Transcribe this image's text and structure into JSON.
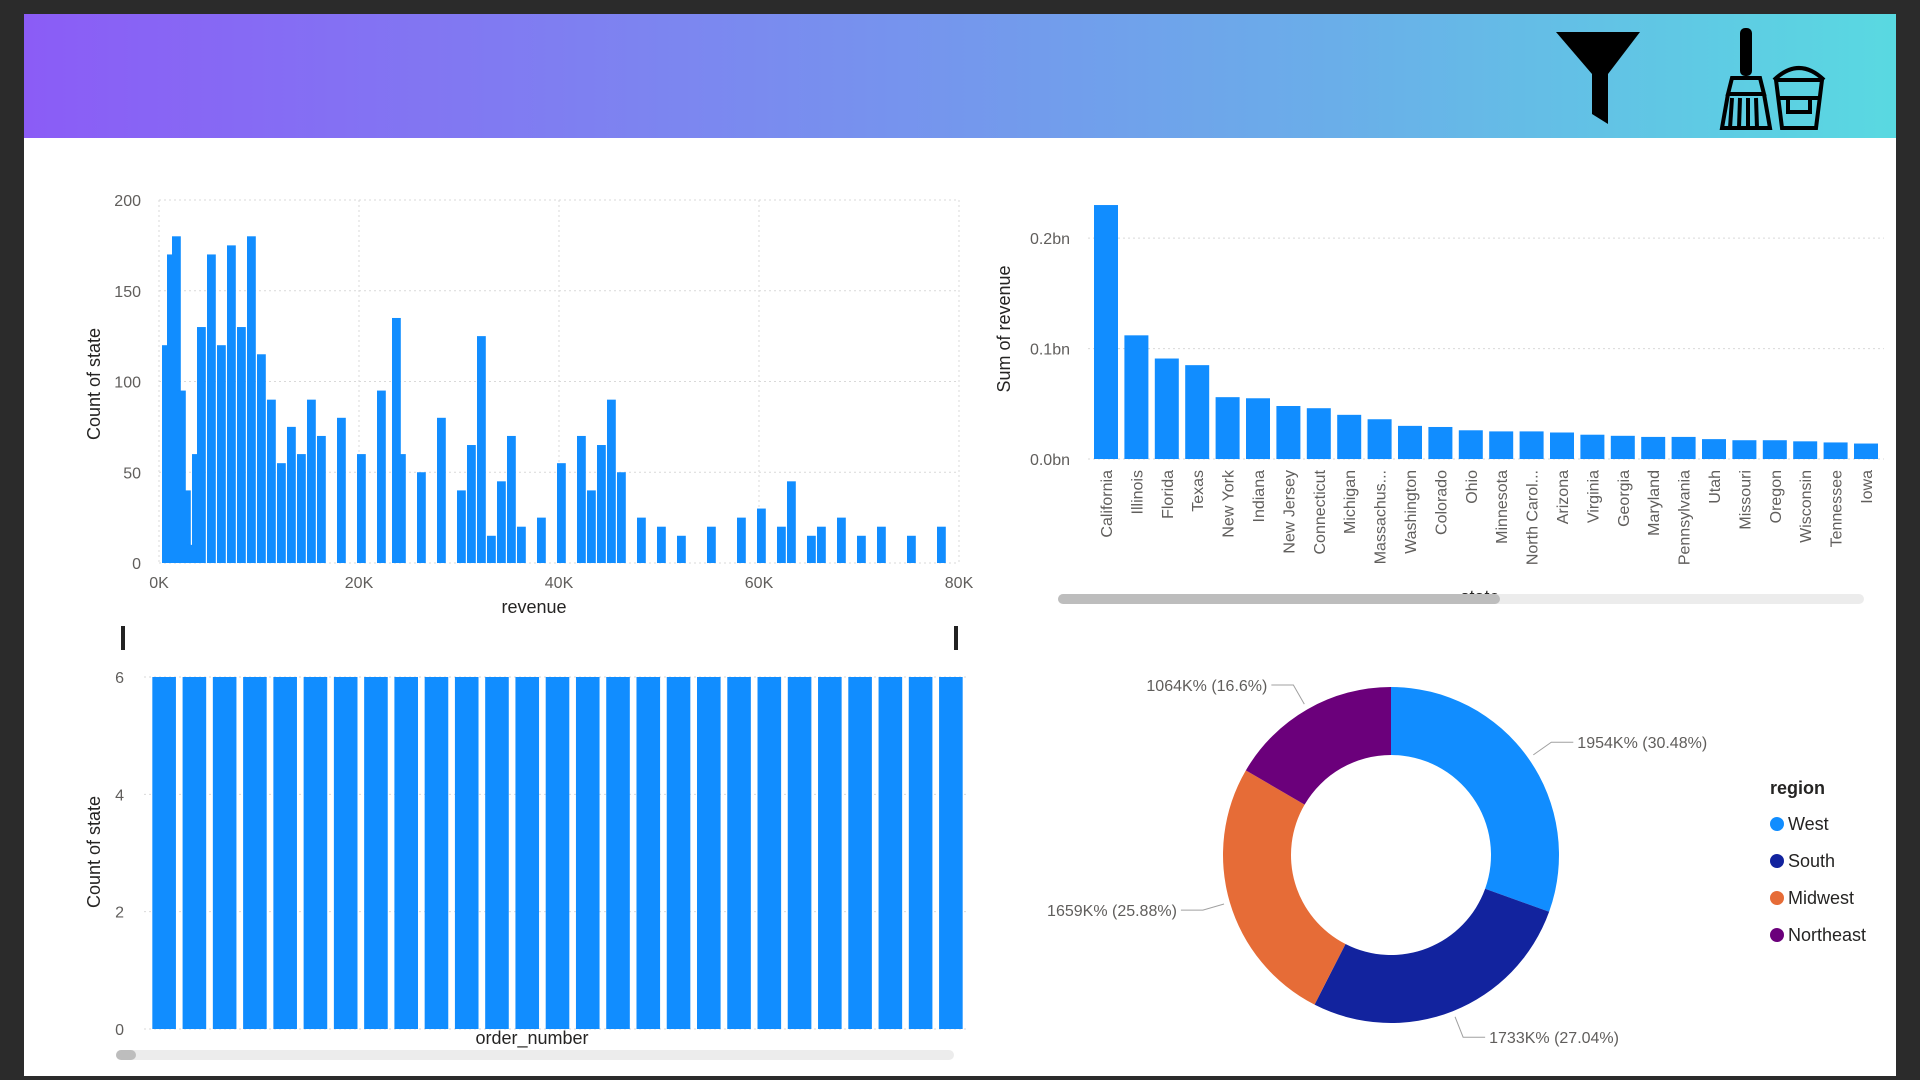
{
  "header": {
    "filter_icon": "funnel-icon",
    "clear_icon": "broom-bucket-icon"
  },
  "colors": {
    "bar": "#118dff",
    "grid": "#d9d9d9",
    "axis_text": "#605e5c",
    "title_text": "#252423",
    "region": {
      "West": "#118dff",
      "South": "#12239e",
      "Midwest": "#e66c37",
      "Northeast": "#6b007b"
    }
  },
  "chart_data": [
    {
      "type": "bar",
      "subtype": "histogram",
      "xlabel": "revenue",
      "ylabel": "Count of state",
      "x_ticks": [
        "0K",
        "20K",
        "40K",
        "60K",
        "80K"
      ],
      "y_ticks": [
        "0",
        "50",
        "100",
        "150",
        "200"
      ],
      "xlim": [
        0,
        80000
      ],
      "ylim": [
        0,
        200
      ],
      "grid": true,
      "x": [
        500,
        1000,
        1500,
        2000,
        2500,
        3000,
        3500,
        4000,
        5000,
        6000,
        7000,
        8000,
        9000,
        10000,
        11000,
        12000,
        13000,
        14000,
        15000,
        16000,
        18000,
        20000,
        22000,
        23500,
        24000,
        26000,
        28000,
        30000,
        31000,
        32000,
        33000,
        34000,
        35000,
        36000,
        38000,
        40000,
        42000,
        43000,
        44000,
        45000,
        46000,
        48000,
        50000,
        52000,
        55000,
        58000,
        60000,
        62000,
        63000,
        65000,
        66000,
        68000,
        70000,
        72000,
        75000,
        78000
      ],
      "values": [
        120,
        170,
        180,
        95,
        40,
        10,
        60,
        130,
        170,
        120,
        175,
        130,
        180,
        115,
        90,
        55,
        75,
        60,
        90,
        70,
        80,
        60,
        95,
        135,
        60,
        50,
        80,
        40,
        65,
        125,
        15,
        45,
        70,
        20,
        25,
        55,
        70,
        40,
        65,
        90,
        50,
        25,
        20,
        15,
        20,
        25,
        30,
        20,
        45,
        15,
        20,
        25,
        15,
        20,
        15,
        20
      ]
    },
    {
      "type": "bar",
      "xlabel": "state",
      "ylabel": "Sum of revenue",
      "y_ticks": [
        "0.0bn",
        "0.1bn",
        "0.2bn"
      ],
      "ylim": [
        0,
        0.24
      ],
      "grid": true,
      "categories": [
        "California",
        "Illinois",
        "Florida",
        "Texas",
        "New York",
        "Indiana",
        "New Jersey",
        "Connecticut",
        "Michigan",
        "Massachus...",
        "Washington",
        "Colorado",
        "Ohio",
        "Minnesota",
        "North Carol...",
        "Arizona",
        "Virginia",
        "Georgia",
        "Maryland",
        "Pennsylvania",
        "Utah",
        "Missouri",
        "Oregon",
        "Wisconsin",
        "Tennessee",
        "Iowa"
      ],
      "values": [
        0.23,
        0.112,
        0.091,
        0.085,
        0.056,
        0.055,
        0.048,
        0.046,
        0.04,
        0.036,
        0.03,
        0.029,
        0.026,
        0.025,
        0.025,
        0.024,
        0.022,
        0.021,
        0.02,
        0.02,
        0.018,
        0.017,
        0.017,
        0.016,
        0.015,
        0.014
      ]
    },
    {
      "type": "bar",
      "xlabel": "order_number",
      "ylabel": "Count of state",
      "y_ticks": [
        "0",
        "2",
        "4",
        "6"
      ],
      "ylim": [
        0,
        6
      ],
      "grid": true,
      "bar_count": 27,
      "values": [
        6,
        6,
        6,
        6,
        6,
        6,
        6,
        6,
        6,
        6,
        6,
        6,
        6,
        6,
        6,
        6,
        6,
        6,
        6,
        6,
        6,
        6,
        6,
        6,
        6,
        6,
        6
      ]
    },
    {
      "type": "pie",
      "subtype": "donut",
      "legend_title": "region",
      "legend_position": "right",
      "series": [
        {
          "name": "West",
          "value": 1954,
          "label": "1954K% (30.48%)"
        },
        {
          "name": "South",
          "value": 1733,
          "label": "1733K% (27.04%)"
        },
        {
          "name": "Midwest",
          "value": 1659,
          "label": "1659K% (25.88%)"
        },
        {
          "name": "Northeast",
          "value": 1064,
          "label": "1064K% (16.6%)"
        }
      ]
    }
  ]
}
